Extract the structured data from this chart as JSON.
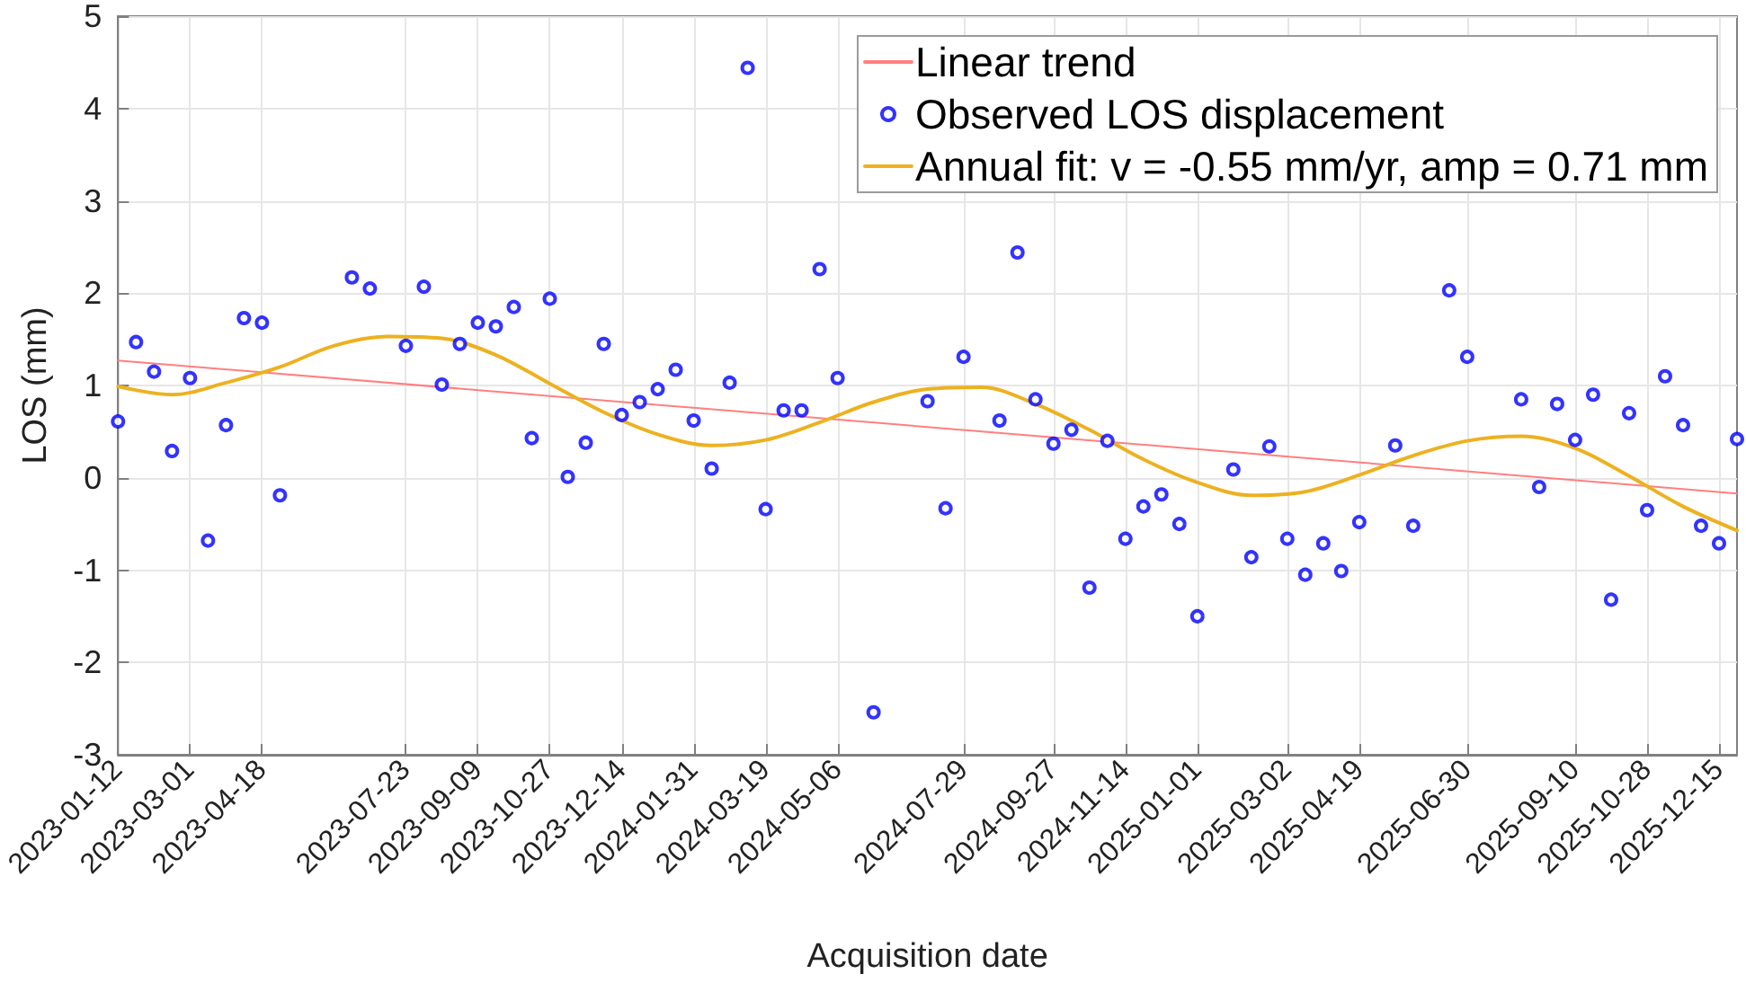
{
  "chart_data": {
    "type": "scatter",
    "xlabel": "Acquisition date",
    "ylabel": "LOS (mm)",
    "xlim": [
      "2023-01-12",
      "2025-12-27"
    ],
    "xticks": [
      "2023-01-12",
      "2023-03-01",
      "2023-04-18",
      "2023-07-23",
      "2023-09-09",
      "2023-10-27",
      "2023-12-14",
      "2024-01-31",
      "2024-03-19",
      "2024-05-06",
      "2024-07-29",
      "2024-09-27",
      "2024-11-14",
      "2025-01-01",
      "2025-03-02",
      "2025-04-19",
      "2025-06-30",
      "2025-09-10",
      "2025-10-28",
      "2025-12-15"
    ],
    "ylim": [
      -3,
      5
    ],
    "yticks": [
      -3,
      -2,
      -1,
      0,
      1,
      2,
      3,
      4,
      5
    ],
    "grid": true,
    "legend": "top right",
    "series": [
      {
        "name": "Linear trend",
        "type": "line",
        "color": "#ff7f7f",
        "x": [
          "2023-01-12",
          "2025-12-27"
        ],
        "values": [
          1.27,
          -0.17
        ]
      },
      {
        "name": "Observed LOS displacement",
        "marker": "circle",
        "color": "#0000ff",
        "x": [
          "2023-01-12",
          "2023-01-24",
          "2023-02-05",
          "2023-02-17",
          "2023-03-01",
          "2023-03-13",
          "2023-03-25",
          "2023-04-06",
          "2023-04-18",
          "2023-04-30",
          "2023-06-17",
          "2023-06-29",
          "2023-07-23",
          "2023-08-04",
          "2023-08-16",
          "2023-08-28",
          "2023-09-09",
          "2023-09-21",
          "2023-10-03",
          "2023-10-15",
          "2023-10-27",
          "2023-11-08",
          "2023-11-20",
          "2023-12-02",
          "2023-12-14",
          "2023-12-26",
          "2024-01-07",
          "2024-01-19",
          "2024-01-31",
          "2024-02-12",
          "2024-02-24",
          "2024-03-07",
          "2024-03-19",
          "2024-03-31",
          "2024-04-12",
          "2024-04-24",
          "2024-05-06",
          "2024-05-30",
          "2024-07-05",
          "2024-07-17",
          "2024-07-29",
          "2024-08-22",
          "2024-09-03",
          "2024-09-15",
          "2024-09-27",
          "2024-10-09",
          "2024-10-21",
          "2024-11-02",
          "2024-11-14",
          "2024-11-26",
          "2024-12-08",
          "2024-12-20",
          "2025-01-01",
          "2025-01-25",
          "2025-02-06",
          "2025-02-18",
          "2025-03-02",
          "2025-03-14",
          "2025-03-26",
          "2025-04-07",
          "2025-04-19",
          "2025-05-13",
          "2025-05-25",
          "2025-06-18",
          "2025-06-30",
          "2025-08-05",
          "2025-08-17",
          "2025-08-29",
          "2025-09-10",
          "2025-09-22",
          "2025-10-04",
          "2025-10-16",
          "2025-10-28",
          "2025-11-09",
          "2025-11-21",
          "2025-12-03",
          "2025-12-15",
          "2025-12-27"
        ],
        "values": [
          0.61,
          1.47,
          1.15,
          0.29,
          1.08,
          -0.68,
          0.57,
          1.73,
          1.68,
          -0.19,
          2.17,
          2.05,
          1.43,
          2.07,
          1.01,
          1.45,
          1.68,
          1.64,
          1.85,
          0.43,
          1.94,
          0.01,
          0.38,
          1.45,
          0.68,
          0.82,
          0.96,
          1.17,
          0.62,
          0.1,
          1.03,
          4.44,
          -0.34,
          0.73,
          0.73,
          2.26,
          1.08,
          -2.54,
          0.83,
          -0.33,
          1.31,
          0.62,
          2.44,
          0.85,
          0.37,
          0.52,
          -1.19,
          0.4,
          -0.66,
          -0.31,
          -0.18,
          -0.5,
          -1.5,
          0.09,
          -0.86,
          0.34,
          -0.66,
          -1.05,
          -0.71,
          -1.01,
          -0.48,
          0.35,
          -0.52,
          2.03,
          1.31,
          0.85,
          -0.1,
          0.8,
          0.41,
          0.9,
          -1.32,
          0.7,
          -0.35,
          1.1,
          0.57,
          -0.52,
          -0.71,
          0.42
        ]
      },
      {
        "name": "Annual fit: v = -0.55 mm/yr, amp = 0.71 mm",
        "type": "line",
        "color": "#edb120",
        "x": [
          "2023-01-12",
          "2023-02-17",
          "2023-03-25",
          "2023-04-30",
          "2023-06-05",
          "2023-07-11",
          "2023-08-16",
          "2023-09-21",
          "2023-10-27",
          "2023-12-02",
          "2024-01-07",
          "2024-02-12",
          "2024-03-19",
          "2024-04-24",
          "2024-05-30",
          "2024-07-05",
          "2024-08-10",
          "2024-09-15",
          "2024-10-21",
          "2024-11-26",
          "2025-01-01",
          "2025-02-06",
          "2025-03-14",
          "2025-04-19",
          "2025-05-25",
          "2025-06-30",
          "2025-08-05",
          "2025-09-10",
          "2025-10-16",
          "2025-11-21",
          "2025-12-27"
        ],
        "values": [
          0.99,
          0.9,
          1.03,
          1.2,
          1.43,
          1.53,
          1.51,
          1.33,
          1.02,
          0.71,
          0.47,
          0.35,
          0.41,
          0.6,
          0.82,
          0.96,
          0.98,
          0.8,
          0.52,
          0.2,
          -0.05,
          -0.19,
          -0.15,
          0.03,
          0.24,
          0.4,
          0.45,
          0.32,
          0.02,
          -0.31,
          -0.57
        ]
      }
    ]
  }
}
